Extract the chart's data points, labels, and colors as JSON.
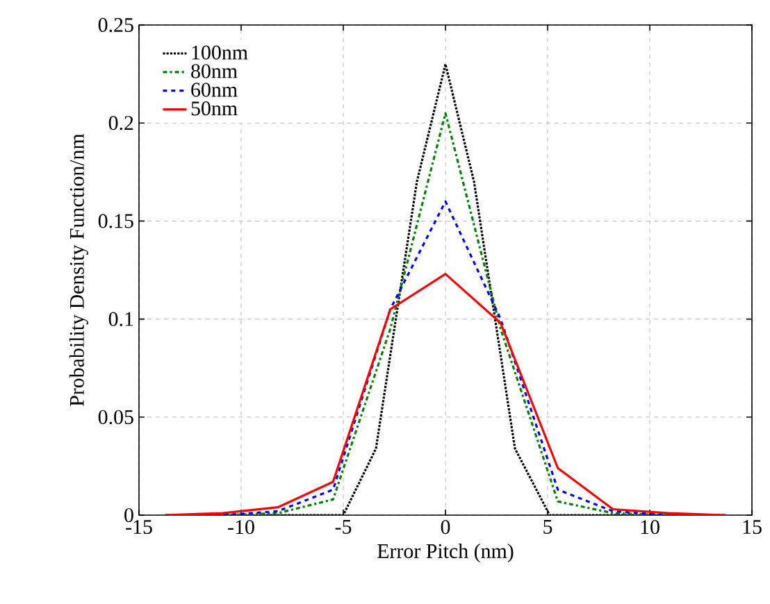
{
  "chart_data": {
    "type": "line",
    "xlabel": "Error Pitch (nm)",
    "ylabel": "Probability Density Function/nm",
    "xlim": [
      -15,
      15
    ],
    "ylim": [
      0,
      0.25
    ],
    "xticks": [
      -15,
      -10,
      -5,
      0,
      5,
      10,
      15
    ],
    "yticks": [
      0,
      0.05,
      0.1,
      0.15,
      0.2,
      0.25
    ],
    "grid": true,
    "legend": "top left",
    "marker": "none",
    "series": [
      {
        "name": "100nm",
        "color": "#000000",
        "line_style": "dotted",
        "x": [
          -13.7,
          -5,
          -3.4,
          -1.4,
          0,
          1.4,
          3.4,
          5.1,
          13.7
        ],
        "values": [
          0,
          0,
          0.034,
          0.17,
          0.23,
          0.17,
          0.034,
          0,
          0
        ]
      },
      {
        "name": "80nm",
        "color": "#008000",
        "line_style": "dashdot",
        "x": [
          -13.7,
          -10.9,
          -8.2,
          -5.5,
          -2.7,
          0,
          2.7,
          5.5,
          8.2,
          10.9,
          13.7
        ],
        "values": [
          0,
          0,
          0.001,
          0.008,
          0.095,
          0.205,
          0.095,
          0.007,
          0.001,
          0,
          0
        ]
      },
      {
        "name": "60nm",
        "color": "#0000ff",
        "line_style": "dashed",
        "x": [
          -13.7,
          -10.9,
          -8.2,
          -5.5,
          -2.7,
          0,
          2.7,
          5.5,
          8.2,
          10.9,
          13.7
        ],
        "values": [
          0,
          0,
          0.002,
          0.013,
          0.105,
          0.16,
          0.1,
          0.013,
          0.002,
          0,
          0
        ]
      },
      {
        "name": "50nm",
        "color": "#ff0000",
        "line_style": "solid",
        "x": [
          -13.7,
          -10.9,
          -8.2,
          -5.5,
          -2.7,
          0,
          2.7,
          5.5,
          8.2,
          10.9,
          13.7
        ],
        "values": [
          0,
          0.001,
          0.004,
          0.017,
          0.105,
          0.123,
          0.098,
          0.024,
          0.003,
          0.001,
          0
        ]
      }
    ]
  }
}
